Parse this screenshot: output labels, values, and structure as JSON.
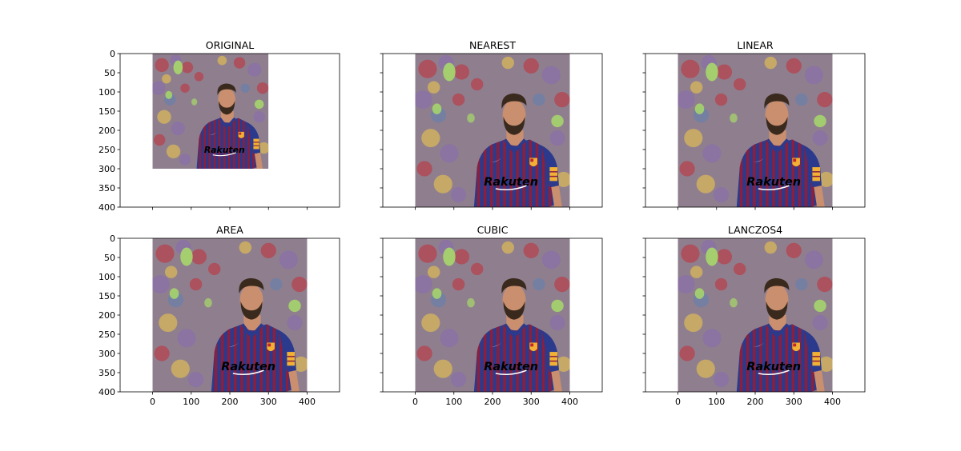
{
  "figure": {
    "background": "#ffffff",
    "share_x": true,
    "share_y": true
  },
  "chart_data": [
    {
      "type": "image",
      "title": "ORIGINAL",
      "image_extent": {
        "x": [
          0,
          300
        ],
        "y": [
          0,
          300
        ]
      },
      "xlim": [
        -84,
        484
      ],
      "ylim": [
        400,
        0
      ],
      "xticks": [
        0,
        100,
        200,
        300,
        400
      ],
      "yticks": [
        0,
        50,
        100,
        150,
        200,
        250,
        300,
        350,
        400
      ],
      "show_xticklabels": false,
      "show_yticklabels": true
    },
    {
      "type": "image",
      "title": "NEAREST",
      "image_extent": {
        "x": [
          0,
          400
        ],
        "y": [
          0,
          400
        ]
      },
      "xlim": [
        -84,
        484
      ],
      "ylim": [
        400,
        0
      ],
      "xticks": [
        0,
        100,
        200,
        300,
        400
      ],
      "yticks": [
        0,
        50,
        100,
        150,
        200,
        250,
        300,
        350,
        400
      ],
      "show_xticklabels": false,
      "show_yticklabels": false
    },
    {
      "type": "image",
      "title": "LINEAR",
      "image_extent": {
        "x": [
          0,
          400
        ],
        "y": [
          0,
          400
        ]
      },
      "xlim": [
        -84,
        484
      ],
      "ylim": [
        400,
        0
      ],
      "xticks": [
        0,
        100,
        200,
        300,
        400
      ],
      "yticks": [
        0,
        50,
        100,
        150,
        200,
        250,
        300,
        350,
        400
      ],
      "show_xticklabels": false,
      "show_yticklabels": false
    },
    {
      "type": "image",
      "title": "AREA",
      "image_extent": {
        "x": [
          0,
          400
        ],
        "y": [
          0,
          400
        ]
      },
      "xlim": [
        -84,
        484
      ],
      "ylim": [
        400,
        0
      ],
      "xticks": [
        0,
        100,
        200,
        300,
        400
      ],
      "yticks": [
        0,
        50,
        100,
        150,
        200,
        250,
        300,
        350,
        400
      ],
      "show_xticklabels": true,
      "show_yticklabels": true
    },
    {
      "type": "image",
      "title": "CUBIC",
      "image_extent": {
        "x": [
          0,
          400
        ],
        "y": [
          0,
          400
        ]
      },
      "xlim": [
        -84,
        484
      ],
      "ylim": [
        400,
        0
      ],
      "xticks": [
        0,
        100,
        200,
        300,
        400
      ],
      "yticks": [
        0,
        50,
        100,
        150,
        200,
        250,
        300,
        350,
        400
      ],
      "show_xticklabels": true,
      "show_yticklabels": false
    },
    {
      "type": "image",
      "title": "LANCZOS4",
      "image_extent": {
        "x": [
          0,
          400
        ],
        "y": [
          0,
          400
        ]
      },
      "xlim": [
        -84,
        484
      ],
      "ylim": [
        400,
        0
      ],
      "xticks": [
        0,
        100,
        200,
        300,
        400
      ],
      "yticks": [
        0,
        50,
        100,
        150,
        200,
        250,
        300,
        350,
        400
      ],
      "show_xticklabels": true,
      "show_yticklabels": false
    }
  ],
  "photo": {
    "subject": "soccer player in striped jersey against blurred crowd",
    "jersey_text": "Rakuten",
    "colors": {
      "crowd_base": "#8f7f8e",
      "crowd_red": "#b5414d",
      "crowd_purple": "#8a6fa8",
      "crowd_yellow": "#d8b55a",
      "crowd_blue": "#6b7fa8",
      "crowd_green": "#a7d86a",
      "jersey_blue": "#2b3a8c",
      "jersey_maroon": "#8a1f3e",
      "skin": "#c98f6e",
      "hair": "#3a2a1e",
      "sleeve_orange": "#f2b134"
    }
  }
}
